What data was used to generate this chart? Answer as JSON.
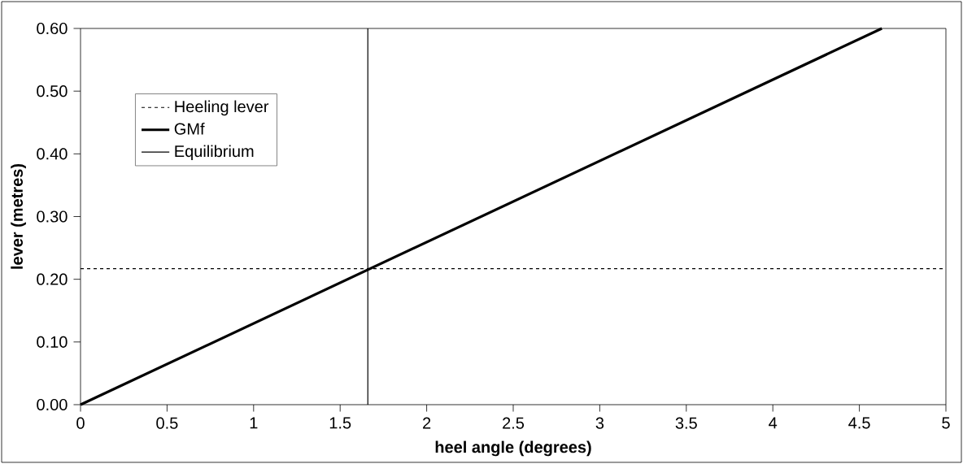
{
  "chart_data": {
    "type": "line",
    "xlabel": "heel angle (degrees)",
    "ylabel": "lever (metres)",
    "series": [
      {
        "name": "Heeling lever",
        "color": "#000000",
        "x": [
          0,
          5
        ],
        "values": [
          0.217,
          0.217
        ],
        "line_style": "dotted"
      },
      {
        "name": "GMf",
        "color": "#000000",
        "x": [
          0,
          4.63
        ],
        "values": [
          0,
          0.6
        ],
        "line_style": "solid"
      },
      {
        "name": "Equilibrium",
        "color": "#000000",
        "x": [
          1.66,
          1.66
        ],
        "values": [
          0,
          0.6
        ],
        "line_style": "solid"
      }
    ],
    "xlim": [
      0,
      5
    ],
    "ylim": [
      0,
      0.6
    ],
    "xticks": [
      0,
      0.5,
      1,
      1.5,
      2,
      2.5,
      3,
      3.5,
      4,
      4.5,
      5
    ],
    "yticks": [
      {
        "value": 0,
        "label": "0.00"
      },
      {
        "value": 0.1,
        "label": "0.10"
      },
      {
        "value": 0.2,
        "label": "0.20"
      },
      {
        "value": 0.3,
        "label": "0.30"
      },
      {
        "value": 0.4,
        "label": "0.40"
      },
      {
        "value": 0.5,
        "label": "0.50"
      },
      {
        "value": 0.6,
        "label": "0.60"
      }
    ],
    "grid": false,
    "legend": "top left",
    "marker": "none"
  }
}
